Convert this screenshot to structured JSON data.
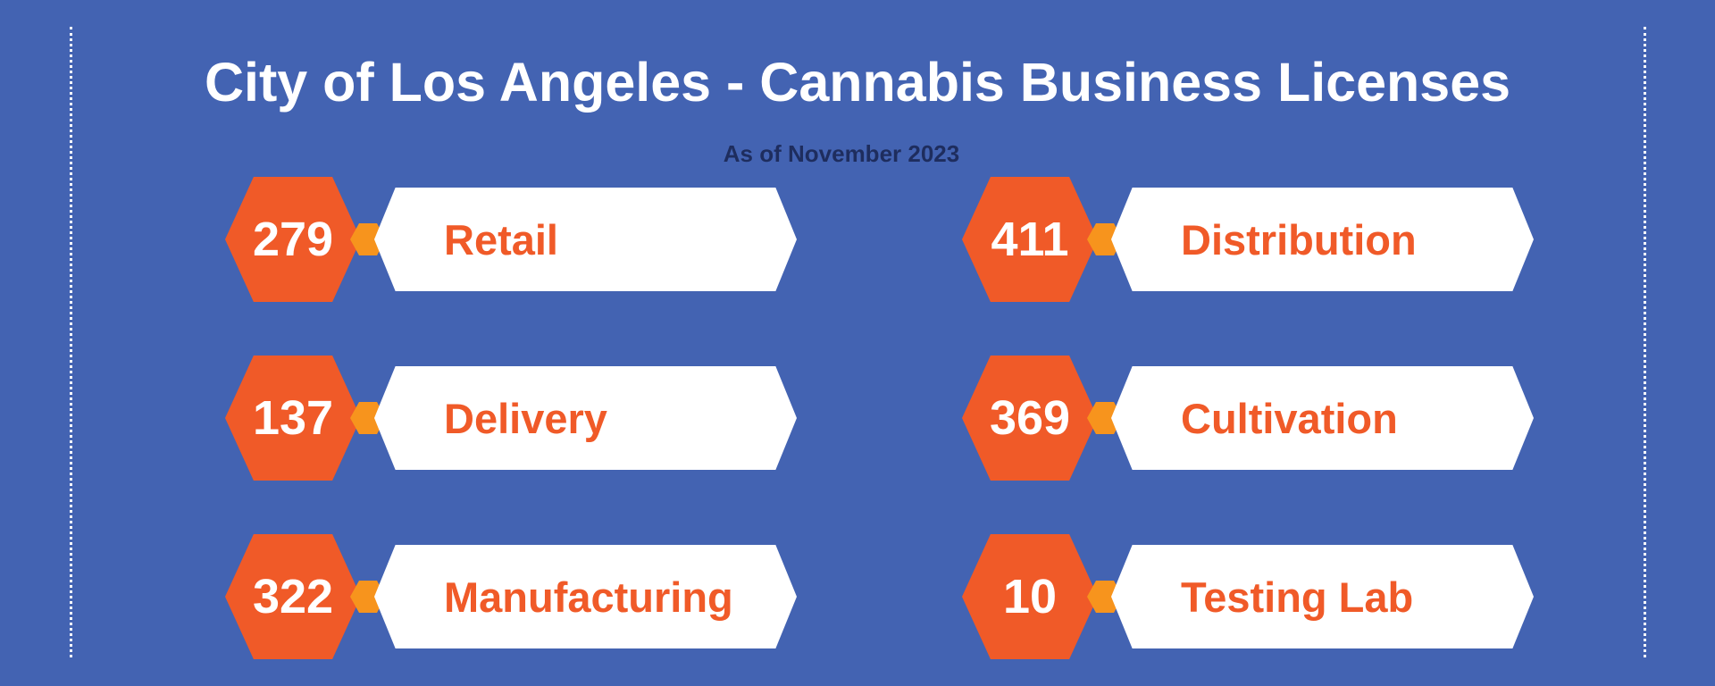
{
  "title": "City of Los Angeles - Cannabis Business Licenses",
  "subtitle": "As of November 2023",
  "licenses": [
    {
      "count": "279",
      "category": "Retail"
    },
    {
      "count": "411",
      "category": "Distribution"
    },
    {
      "count": "137",
      "category": "Delivery"
    },
    {
      "count": "369",
      "category": "Cultivation"
    },
    {
      "count": "322",
      "category": "Manufacturing"
    },
    {
      "count": "10",
      "category": "Testing Lab"
    }
  ],
  "colors": {
    "background": "#4363b2",
    "accent": "#f05a28",
    "connector": "#f7941d",
    "title": "#ffffff",
    "subtitle": "#1e2d5e"
  }
}
